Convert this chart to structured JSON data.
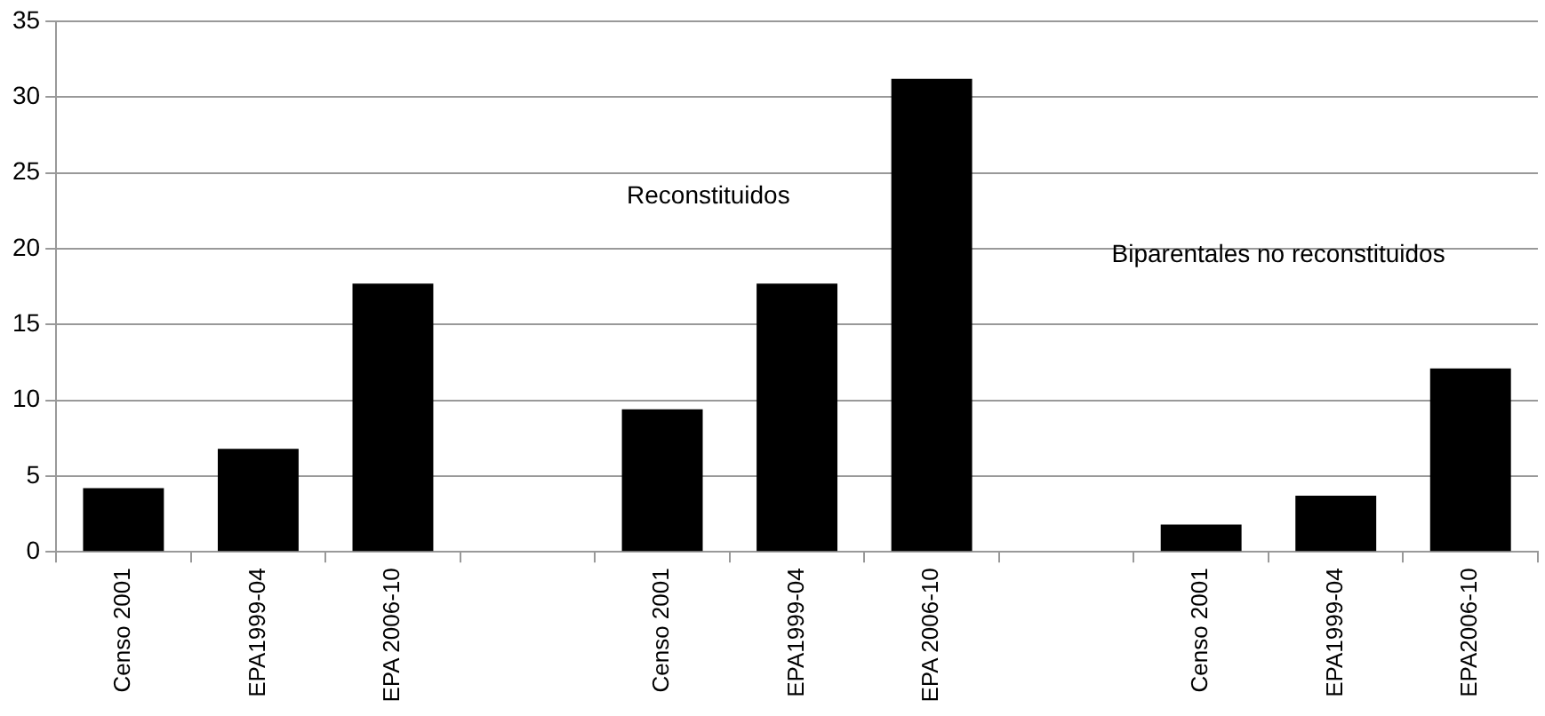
{
  "chart_data": {
    "type": "bar",
    "categories": [
      "Censo 2001",
      "EPA1999-04",
      "EPA 2006-10",
      null,
      "Censo 2001",
      "EPA1999-04",
      "EPA 2006-10",
      null,
      "Censo 2001",
      "EPA1999-04",
      "EPA2006-10"
    ],
    "values": [
      4.2,
      6.8,
      17.7,
      null,
      9.4,
      17.7,
      31.2,
      null,
      1.8,
      3.7,
      12.1
    ],
    "color": "#000000",
    "ylim": [
      0,
      35
    ],
    "yticks": [
      0,
      5,
      10,
      15,
      20,
      25,
      30,
      35
    ],
    "grid": "y",
    "legend": false,
    "annotations": [
      "Reconstituidos",
      "Biparentales no reconstituidos"
    ]
  }
}
